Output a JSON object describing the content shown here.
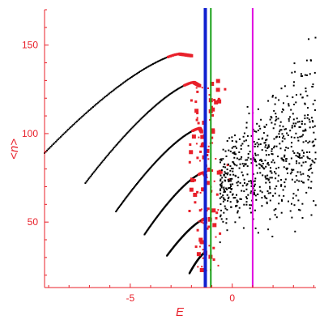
{
  "chart_data": {
    "type": "scatter",
    "title": "",
    "xlabel": "E",
    "ylabel": "<n>",
    "xlim": [
      -9.2,
      4.1
    ],
    "ylim": [
      13,
      170
    ],
    "xticks": [
      -5,
      0
    ],
    "xtick_labels": [
      "-5",
      "0"
    ],
    "yticks": [
      50,
      100,
      150
    ],
    "ytick_labels": [
      "50",
      "100",
      "150"
    ],
    "grid": false,
    "axis_color": "#e8202a",
    "vertical_lines": [
      {
        "x": -1.32,
        "color": "#1020d0",
        "width": "thick"
      },
      {
        "x": -1.05,
        "color": "#18a018",
        "width": "thin"
      },
      {
        "x": 1.0,
        "color": "#e000e0",
        "width": "thin"
      }
    ],
    "series": [
      {
        "color": "#000000",
        "marker": "dot",
        "description_points": "regular branches",
        "branches": [
          {
            "from": [
              -9.2,
              89
            ],
            "peak": [
              -2.6,
              145
            ],
            "to": [
              -2.0,
              144
            ]
          },
          {
            "from": [
              -7.2,
              72
            ],
            "peak": [
              -1.9,
              129
            ],
            "to": [
              -1.6,
              127
            ]
          },
          {
            "from": [
              -5.7,
              56
            ],
            "peak": [
              -1.6,
              103
            ],
            "to": [
              -1.5,
              101
            ]
          },
          {
            "from": [
              -4.3,
              43
            ],
            "peak": [
              -1.4,
              78
            ],
            "to": [
              -1.3,
              76
            ]
          },
          {
            "from": [
              -3.2,
              31
            ],
            "peak": [
              -1.3,
              52
            ],
            "to": [
              -1.3,
              50
            ]
          },
          {
            "from": [
              -2.1,
              21
            ],
            "peak": [
              -1.3,
              33
            ],
            "to": [
              -1.3,
              32
            ]
          }
        ]
      },
      {
        "color": "#e8202a",
        "marker": "dot",
        "chaotic_region": {
          "x": [
            -2.5,
            0.1
          ],
          "y": [
            22,
            130
          ]
        }
      },
      {
        "color": "#000000",
        "marker": "dot",
        "chaotic_region": {
          "x": [
            -0.6,
            4.1
          ],
          "y": [
            35,
            170
          ]
        }
      }
    ]
  }
}
